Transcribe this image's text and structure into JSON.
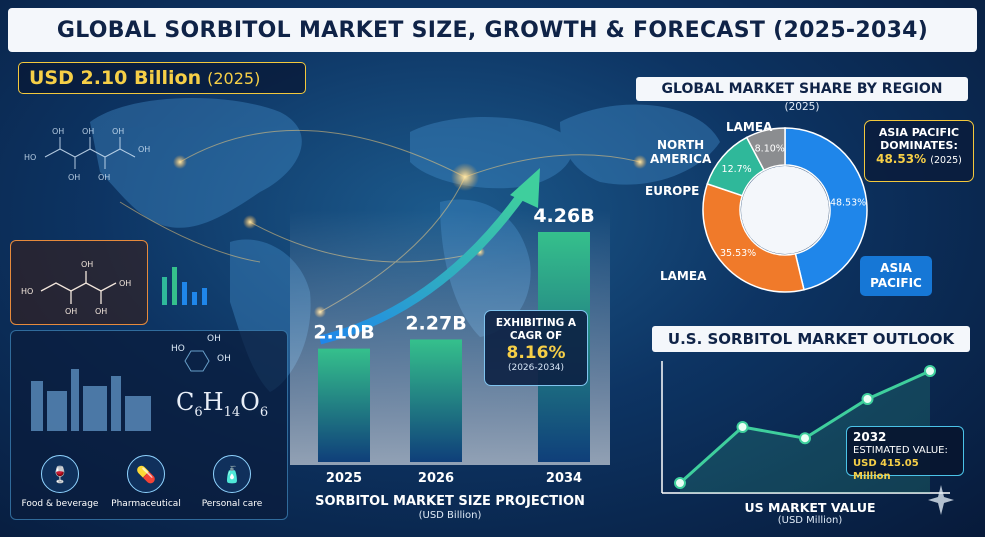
{
  "header": {
    "title": "GLOBAL SORBITOL MARKET SIZE, GROWTH & FORECAST (2025-2034)",
    "market_value": "USD 2.10 Billion",
    "market_year": "(2025)"
  },
  "left_panel": {
    "formula_parts": [
      "C",
      "6",
      "H",
      "14",
      "O",
      "6"
    ],
    "applications": [
      {
        "label": "Food & beverage",
        "icon": "food-beverage-icon"
      },
      {
        "label": "Pharmaceutical",
        "icon": "pill-icon"
      },
      {
        "label": "Personal care",
        "icon": "bottle-icon"
      }
    ]
  },
  "projection": {
    "caption": "SORBITOL MARKET SIZE PROJECTION",
    "unit": "(USD Billion)",
    "cagr_line1": "EXHIBITING A",
    "cagr_line2": "CAGR OF",
    "cagr_value": "8.16%",
    "cagr_period": "(2026-2034)"
  },
  "share": {
    "title": "GLOBAL MARKET SHARE BY REGION",
    "year": "(2025)",
    "labels": {
      "lamea_top": "LAMEA",
      "north_america": "NORTH\nAMERICA",
      "europe": "EUROPE",
      "lamea_bottom": "LAMEA",
      "asia_pacific": "ASIA\nPACIFIC"
    },
    "callout_title": "ASIA PACIFIC\nDOMINATES:",
    "callout_value": "48.53%",
    "callout_year": "(2025)"
  },
  "us": {
    "title": "U.S. SORBITOL MARKET OUTLOOK",
    "est_year": "2032",
    "est_label": "ESTIMATED VALUE:",
    "est_value": "USD 415.05 Million",
    "caption": "US MARKET VALUE",
    "unit": "(USD Million)"
  },
  "colors": {
    "accent_gold": "#f6cf47",
    "bar_top": "#35c08c",
    "bar_bottom": "#0f3f7a",
    "pie_blue": "#1f86ea",
    "pie_orange": "#f07a2a",
    "pie_green": "#2fb89a",
    "pie_gray": "#8b8d90",
    "line_teal": "#3fcf9d"
  },
  "chart_data": [
    {
      "type": "bar",
      "categories": [
        "2025",
        "2026",
        "2034"
      ],
      "values": [
        2.1,
        2.27,
        4.26
      ],
      "value_labels": [
        "2.10B",
        "2.27B",
        "4.26B"
      ],
      "xlabel": "SORBITOL MARKET SIZE PROJECTION",
      "ylabel": "(USD Billion)"
    },
    {
      "type": "pie",
      "title": "GLOBAL MARKET SHARE BY REGION",
      "slices": [
        {
          "name": "ASIA PACIFIC",
          "value": 48.53,
          "label": "48.53%",
          "color": "#1f86ea"
        },
        {
          "name": "LAMEA",
          "value": 35.53,
          "label": "35.53%",
          "color": "#f07a2a"
        },
        {
          "name": "EUROPE",
          "value": 12.7,
          "label": "12.7%",
          "color": "#2fb89a"
        },
        {
          "name": "LAMEA",
          "value": 8.1,
          "label": "8.10%",
          "color": "#8b8d90"
        }
      ]
    },
    {
      "type": "line",
      "title": "U.S. SORBITOL MARKET OUTLOOK",
      "xlabel": "US MARKET VALUE",
      "ylabel": "(USD Million)",
      "values": [
        0.0,
        0.5,
        0.4,
        0.75,
        1.0
      ],
      "highlight": {
        "x_label": "2032",
        "value": "USD 415.05 Million"
      }
    }
  ]
}
